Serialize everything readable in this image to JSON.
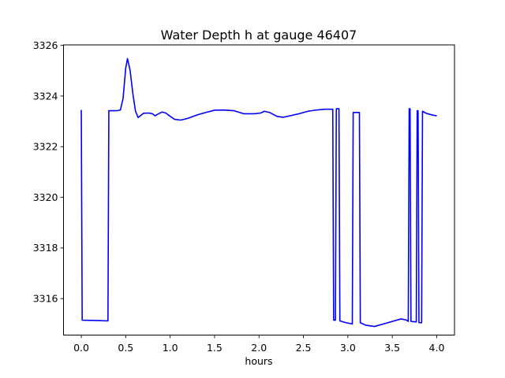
{
  "window": {
    "background_color": "#ffffff",
    "text_color": "#000000",
    "spine_color": "#000000"
  },
  "chart_data": {
    "type": "line",
    "title": "Water Depth h at gauge 46407",
    "xlabel": "hours",
    "ylabel": "",
    "grid": false,
    "legend": null,
    "line_color": "#0000ff",
    "xlim": [
      -0.2,
      4.2
    ],
    "ylim": [
      3314.56,
      3326.02
    ],
    "x_tick_values": [
      0.0,
      0.5,
      1.0,
      1.5,
      2.0,
      2.5,
      3.0,
      3.5,
      4.0
    ],
    "x_tick_labels": [
      "0.0",
      "0.5",
      "1.0",
      "1.5",
      "2.0",
      "2.5",
      "3.0",
      "3.5",
      "4.0"
    ],
    "y_tick_values": [
      3316,
      3318,
      3320,
      3322,
      3324,
      3326
    ],
    "y_tick_labels": [
      "3316",
      "3318",
      "3320",
      "3322",
      "3324",
      "3326"
    ],
    "series": [
      {
        "name": "Water Depth h",
        "x": [
          0.0,
          0.01,
          0.3,
          0.31,
          0.4,
          0.44,
          0.47,
          0.5,
          0.52,
          0.55,
          0.58,
          0.61,
          0.64,
          0.7,
          0.76,
          0.8,
          0.83,
          0.87,
          0.91,
          0.95,
          1.0,
          1.05,
          1.12,
          1.2,
          1.3,
          1.4,
          1.5,
          1.6,
          1.72,
          1.83,
          1.95,
          2.02,
          2.06,
          2.12,
          2.2,
          2.27,
          2.35,
          2.45,
          2.55,
          2.65,
          2.75,
          2.83,
          2.84,
          2.86,
          2.87,
          2.9,
          2.91,
          2.98,
          3.05,
          3.06,
          3.13,
          3.14,
          3.2,
          3.3,
          3.45,
          3.6,
          3.66,
          3.68,
          3.69,
          3.7,
          3.71,
          3.77,
          3.78,
          3.79,
          3.8,
          3.83,
          3.84,
          3.88,
          3.95,
          4.0
        ],
        "y": [
          3323.45,
          3315.15,
          3315.12,
          3323.42,
          3323.42,
          3323.45,
          3323.9,
          3325.1,
          3325.48,
          3325.0,
          3324.1,
          3323.4,
          3323.15,
          3323.32,
          3323.33,
          3323.3,
          3323.22,
          3323.3,
          3323.37,
          3323.33,
          3323.2,
          3323.08,
          3323.05,
          3323.12,
          3323.25,
          3323.35,
          3323.44,
          3323.45,
          3323.42,
          3323.3,
          3323.3,
          3323.33,
          3323.4,
          3323.35,
          3323.2,
          3323.16,
          3323.22,
          3323.3,
          3323.4,
          3323.45,
          3323.48,
          3323.48,
          3315.15,
          3315.15,
          3323.5,
          3323.5,
          3315.12,
          3315.05,
          3315.0,
          3323.35,
          3323.35,
          3315.05,
          3314.95,
          3314.9,
          3315.05,
          3315.2,
          3315.15,
          3315.1,
          3323.5,
          3323.5,
          3315.1,
          3315.08,
          3323.42,
          3323.42,
          3315.05,
          3315.05,
          3323.4,
          3323.32,
          3323.25,
          3323.22
        ]
      }
    ]
  }
}
